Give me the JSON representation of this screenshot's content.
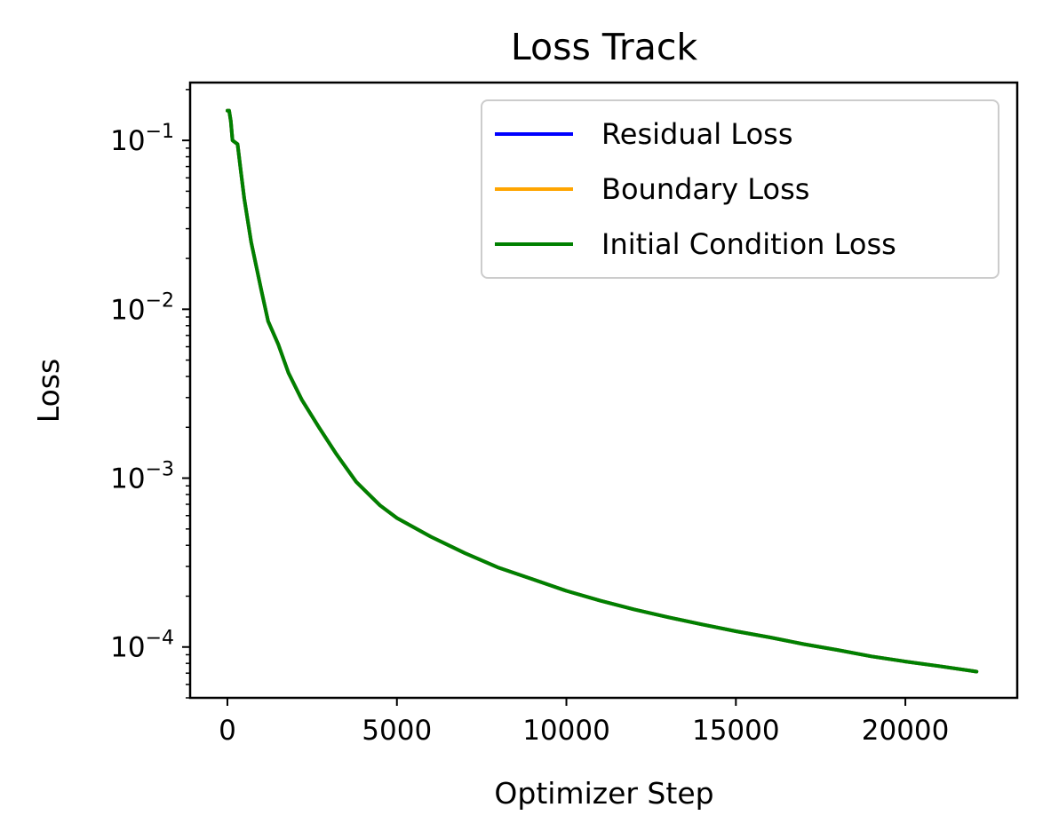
{
  "chart_data": {
    "type": "line",
    "title": "Loss Track",
    "xlabel": "Optimizer Step",
    "ylabel": "Loss",
    "xlim": [
      -1100,
      23300
    ],
    "ylim": [
      5e-05,
      0.22
    ],
    "yscale": "log",
    "xticks": [
      0,
      5000,
      10000,
      15000,
      20000
    ],
    "xtick_labels": [
      "0",
      "5000",
      "10000",
      "15000",
      "20000"
    ],
    "yticks": [
      0.1,
      0.01,
      0.001,
      0.0001
    ],
    "ytick_labels": [
      {
        "base": "10",
        "exp": "−1"
      },
      {
        "base": "10",
        "exp": "−2"
      },
      {
        "base": "10",
        "exp": "−3"
      },
      {
        "base": "10",
        "exp": "−4"
      }
    ],
    "grid": false,
    "legend_position": "top-right",
    "series": [
      {
        "name": "Residual Loss",
        "color": "#0000ff",
        "points": [
          [
            0,
            0.15
          ],
          [
            50,
            0.15
          ],
          [
            100,
            0.13
          ],
          [
            150,
            0.1
          ],
          [
            300,
            0.095
          ],
          [
            400,
            0.065
          ],
          [
            500,
            0.045
          ],
          [
            700,
            0.025
          ],
          [
            1000,
            0.013
          ],
          [
            1200,
            0.0085
          ],
          [
            1500,
            0.0062
          ],
          [
            1800,
            0.0042
          ],
          [
            2200,
            0.0029
          ],
          [
            2700,
            0.002
          ],
          [
            3200,
            0.0014
          ],
          [
            3800,
            0.00095
          ],
          [
            4500,
            0.00069
          ],
          [
            5000,
            0.00058
          ],
          [
            6000,
            0.00045
          ],
          [
            7000,
            0.00036
          ],
          [
            8000,
            0.000295
          ],
          [
            9000,
            0.000252
          ],
          [
            10000,
            0.000215
          ],
          [
            11000,
            0.000188
          ],
          [
            12000,
            0.000167
          ],
          [
            13000,
            0.00015
          ],
          [
            14000,
            0.000136
          ],
          [
            15000,
            0.000124
          ],
          [
            16000,
            0.000114
          ],
          [
            17000,
            0.000104
          ],
          [
            18000,
            9.6e-05
          ],
          [
            19000,
            8.8e-05
          ],
          [
            20000,
            8.2e-05
          ],
          [
            21000,
            7.7e-05
          ],
          [
            22000,
            7.2e-05
          ],
          [
            22100,
            7.15e-05
          ]
        ]
      },
      {
        "name": "Boundary Loss",
        "color": "#ffa500",
        "points": [
          [
            0,
            0.15
          ],
          [
            50,
            0.15
          ],
          [
            100,
            0.13
          ],
          [
            150,
            0.1
          ],
          [
            300,
            0.095
          ],
          [
            400,
            0.065
          ],
          [
            500,
            0.045
          ],
          [
            700,
            0.025
          ],
          [
            1000,
            0.013
          ],
          [
            1200,
            0.0085
          ],
          [
            1500,
            0.0062
          ],
          [
            1800,
            0.0042
          ],
          [
            2200,
            0.0029
          ],
          [
            2700,
            0.002
          ],
          [
            3200,
            0.0014
          ],
          [
            3800,
            0.00095
          ],
          [
            4500,
            0.00069
          ],
          [
            5000,
            0.00058
          ],
          [
            6000,
            0.00045
          ],
          [
            7000,
            0.00036
          ],
          [
            8000,
            0.000295
          ],
          [
            9000,
            0.000252
          ],
          [
            10000,
            0.000215
          ],
          [
            11000,
            0.000188
          ],
          [
            12000,
            0.000167
          ],
          [
            13000,
            0.00015
          ],
          [
            14000,
            0.000136
          ],
          [
            15000,
            0.000124
          ],
          [
            16000,
            0.000114
          ],
          [
            17000,
            0.000104
          ],
          [
            18000,
            9.6e-05
          ],
          [
            19000,
            8.8e-05
          ],
          [
            20000,
            8.2e-05
          ],
          [
            21000,
            7.7e-05
          ],
          [
            22000,
            7.2e-05
          ],
          [
            22100,
            7.15e-05
          ]
        ]
      },
      {
        "name": "Initial Condition Loss",
        "color": "#008000",
        "points": [
          [
            0,
            0.15
          ],
          [
            50,
            0.15
          ],
          [
            100,
            0.13
          ],
          [
            150,
            0.1
          ],
          [
            300,
            0.095
          ],
          [
            400,
            0.065
          ],
          [
            500,
            0.045
          ],
          [
            700,
            0.025
          ],
          [
            1000,
            0.013
          ],
          [
            1200,
            0.0085
          ],
          [
            1500,
            0.0062
          ],
          [
            1800,
            0.0042
          ],
          [
            2200,
            0.0029
          ],
          [
            2700,
            0.002
          ],
          [
            3200,
            0.0014
          ],
          [
            3800,
            0.00095
          ],
          [
            4500,
            0.00069
          ],
          [
            5000,
            0.00058
          ],
          [
            6000,
            0.00045
          ],
          [
            7000,
            0.00036
          ],
          [
            8000,
            0.000295
          ],
          [
            9000,
            0.000252
          ],
          [
            10000,
            0.000215
          ],
          [
            11000,
            0.000188
          ],
          [
            12000,
            0.000167
          ],
          [
            13000,
            0.00015
          ],
          [
            14000,
            0.000136
          ],
          [
            15000,
            0.000124
          ],
          [
            16000,
            0.000114
          ],
          [
            17000,
            0.000104
          ],
          [
            18000,
            9.6e-05
          ],
          [
            19000,
            8.8e-05
          ],
          [
            20000,
            8.2e-05
          ],
          [
            21000,
            7.7e-05
          ],
          [
            22000,
            7.2e-05
          ],
          [
            22100,
            7.15e-05
          ]
        ]
      }
    ]
  }
}
